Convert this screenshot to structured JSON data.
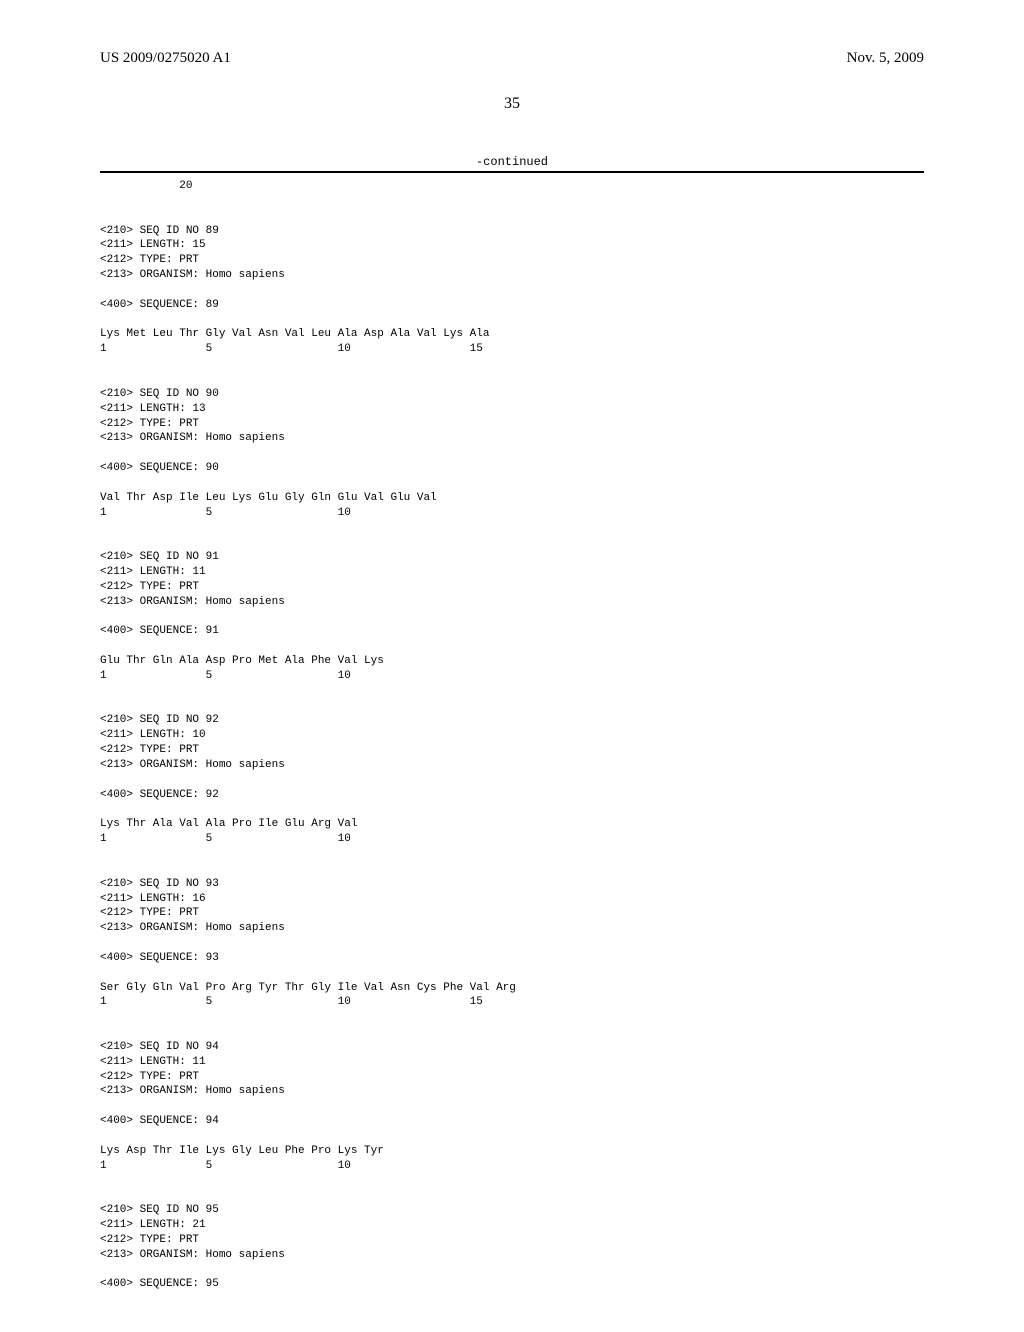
{
  "header": {
    "pub_number": "US 2009/0275020 A1",
    "pub_date": "Nov. 5, 2009"
  },
  "page_number": "35",
  "continued_label": "-continued",
  "sequence_text": "            20\n\n\n<210> SEQ ID NO 89\n<211> LENGTH: 15\n<212> TYPE: PRT\n<213> ORGANISM: Homo sapiens\n\n<400> SEQUENCE: 89\n\nLys Met Leu Thr Gly Val Asn Val Leu Ala Asp Ala Val Lys Ala\n1               5                   10                  15\n\n\n<210> SEQ ID NO 90\n<211> LENGTH: 13\n<212> TYPE: PRT\n<213> ORGANISM: Homo sapiens\n\n<400> SEQUENCE: 90\n\nVal Thr Asp Ile Leu Lys Glu Gly Gln Glu Val Glu Val\n1               5                   10\n\n\n<210> SEQ ID NO 91\n<211> LENGTH: 11\n<212> TYPE: PRT\n<213> ORGANISM: Homo sapiens\n\n<400> SEQUENCE: 91\n\nGlu Thr Gln Ala Asp Pro Met Ala Phe Val Lys\n1               5                   10\n\n\n<210> SEQ ID NO 92\n<211> LENGTH: 10\n<212> TYPE: PRT\n<213> ORGANISM: Homo sapiens\n\n<400> SEQUENCE: 92\n\nLys Thr Ala Val Ala Pro Ile Glu Arg Val\n1               5                   10\n\n\n<210> SEQ ID NO 93\n<211> LENGTH: 16\n<212> TYPE: PRT\n<213> ORGANISM: Homo sapiens\n\n<400> SEQUENCE: 93\n\nSer Gly Gln Val Pro Arg Tyr Thr Gly Ile Val Asn Cys Phe Val Arg\n1               5                   10                  15\n\n\n<210> SEQ ID NO 94\n<211> LENGTH: 11\n<212> TYPE: PRT\n<213> ORGANISM: Homo sapiens\n\n<400> SEQUENCE: 94\n\nLys Asp Thr Ile Lys Gly Leu Phe Pro Lys Tyr\n1               5                   10\n\n\n<210> SEQ ID NO 95\n<211> LENGTH: 21\n<212> TYPE: PRT\n<213> ORGANISM: Homo sapiens\n\n<400> SEQUENCE: 95"
}
